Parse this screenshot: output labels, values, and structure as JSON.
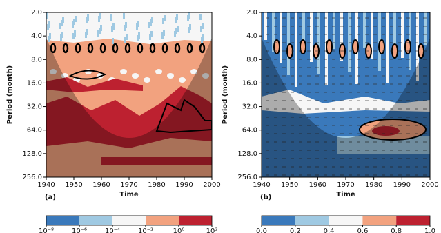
{
  "chart_data": [
    {
      "type": "heatmap",
      "panel_label": "(a)",
      "xlabel": "Time",
      "ylabel": "Period (month)",
      "xlim": [
        1940,
        2000
      ],
      "xticks": [
        1940,
        1950,
        1960,
        1970,
        1980,
        1990,
        2000
      ],
      "ylim": [
        2,
        256
      ],
      "log_scale": true,
      "y_inverted": true,
      "yticks": [
        {
          "value": 2,
          "label": "2.0"
        },
        {
          "value": 4,
          "label": "4.0"
        },
        {
          "value": 8,
          "label": "8.0"
        },
        {
          "value": 16,
          "label": "16.0"
        },
        {
          "value": 32,
          "label": "32.0"
        },
        {
          "value": 64,
          "label": "64.0"
        },
        {
          "value": 128,
          "label": "128.0"
        },
        {
          "value": 256,
          "label": "256.0"
        }
      ],
      "colorbar": {
        "lim": [
          -8,
          2
        ],
        "colors": [
          "#3a79bb",
          "#9fc9e2",
          "#f6f6f6",
          "#f2a27f",
          "#bd2130"
        ],
        "ticks": [
          {
            "value": -8,
            "label": "10⁻⁸"
          },
          {
            "value": -6,
            "label": "10⁻⁶"
          },
          {
            "value": -4,
            "label": "10⁻⁴"
          },
          {
            "value": -2,
            "label": "10⁻²"
          },
          {
            "value": 0,
            "label": "10⁰"
          },
          {
            "value": 2,
            "label": "10²"
          }
        ]
      }
    },
    {
      "type": "heatmap",
      "panel_label": "(b)",
      "xlabel": "Time",
      "ylabel": "Period (month)",
      "xlim": [
        1940,
        2000
      ],
      "xticks": [
        1940,
        1950,
        1960,
        1970,
        1980,
        1990,
        2000
      ],
      "ylim": [
        2,
        256
      ],
      "log_scale": true,
      "y_inverted": true,
      "yticks": [
        {
          "value": 2,
          "label": "2.0"
        },
        {
          "value": 4,
          "label": "4.0"
        },
        {
          "value": 8,
          "label": "8.0"
        },
        {
          "value": 16,
          "label": "16.0"
        },
        {
          "value": 32,
          "label": "32.0"
        },
        {
          "value": 64,
          "label": "64.0"
        },
        {
          "value": 128,
          "label": "128.0"
        },
        {
          "value": 256,
          "label": "256.0"
        }
      ],
      "colorbar": {
        "lim": [
          0,
          1
        ],
        "colors": [
          "#3a79bb",
          "#9fc9e2",
          "#f6f6f6",
          "#f2a27f",
          "#bd2130"
        ],
        "ticks": [
          {
            "value": 0,
            "label": "0.0"
          },
          {
            "value": 0.2,
            "label": "0.2"
          },
          {
            "value": 0.4,
            "label": "0.4"
          },
          {
            "value": 0.6,
            "label": "0.6"
          },
          {
            "value": 0.8,
            "label": "0.8"
          },
          {
            "value": 1,
            "label": "1.0"
          }
        ]
      }
    }
  ]
}
